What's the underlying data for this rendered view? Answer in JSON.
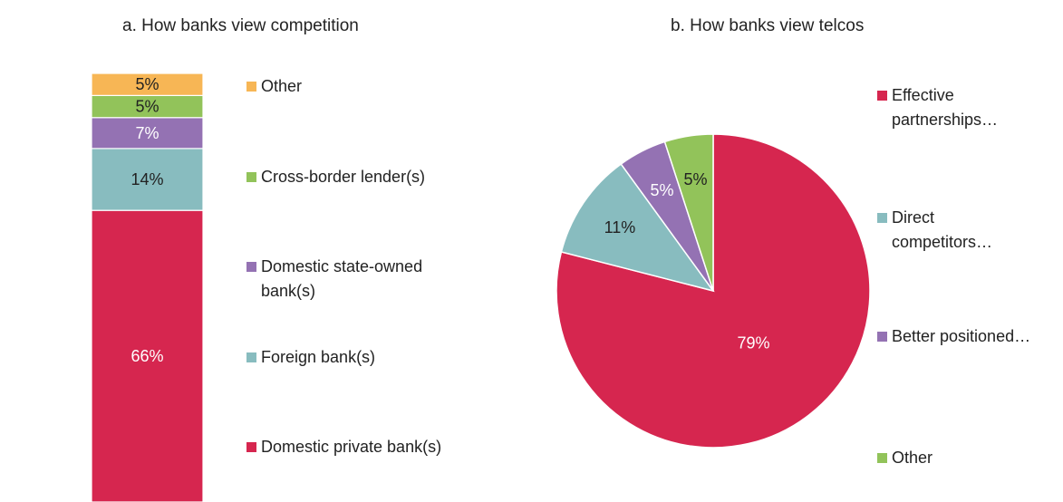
{
  "colors": {
    "domestic_private": "#D6264F",
    "foreign": "#88BCBF",
    "state_owned": "#9472B3",
    "cross_border": "#92C35A",
    "other": "#F7B655",
    "label_dark": "#222222",
    "label_light": "#ffffff"
  },
  "chart_data": [
    {
      "type": "bar",
      "stacked": true,
      "title": "a. How banks view competition",
      "legend_position": "right",
      "series": [
        {
          "name": "Domestic private bank(s)",
          "value": 66,
          "label": "66%",
          "color_key": "domestic_private",
          "label_color_key": "label_light"
        },
        {
          "name": "Foreign bank(s)",
          "value": 14,
          "label": "14%",
          "color_key": "foreign",
          "label_color_key": "label_dark"
        },
        {
          "name": "Domestic state-owned bank(s)",
          "value": 7,
          "label": "7%",
          "color_key": "state_owned",
          "label_color_key": "label_light"
        },
        {
          "name": "Cross-border lender(s)",
          "value": 5,
          "label": "5%",
          "color_key": "cross_border",
          "label_color_key": "label_dark"
        },
        {
          "name": "Other",
          "value": 5,
          "label": "5%",
          "color_key": "other",
          "label_color_key": "label_dark"
        }
      ],
      "legend": [
        {
          "label": "Other",
          "color_key": "other"
        },
        {
          "label": "Cross-border lender(s)",
          "color_key": "cross_border"
        },
        {
          "label": "Domestic state-owned bank(s)",
          "color_key": "state_owned"
        },
        {
          "label": "Foreign bank(s)",
          "color_key": "foreign"
        },
        {
          "label": "Domestic private bank(s)",
          "color_key": "domestic_private"
        }
      ]
    },
    {
      "type": "pie",
      "title": "b. How banks view telcos",
      "legend_position": "right",
      "slices": [
        {
          "name": "Effective partnerships…",
          "value": 79,
          "label": "79%",
          "color_key": "domestic_private",
          "label_color_key": "label_light"
        },
        {
          "name": "Direct competitors…",
          "value": 11,
          "label": "11%",
          "color_key": "foreign",
          "label_color_key": "label_dark"
        },
        {
          "name": "Better positioned…",
          "value": 5,
          "label": "5%",
          "color_key": "state_owned",
          "label_color_key": "label_light"
        },
        {
          "name": "Other",
          "value": 5,
          "label": "5%",
          "color_key": "cross_border",
          "label_color_key": "label_dark"
        }
      ],
      "legend": [
        {
          "label": "Effective partnerships…",
          "color_key": "domestic_private"
        },
        {
          "label": "Direct competitors…",
          "color_key": "foreign"
        },
        {
          "label": "Better positioned…",
          "color_key": "state_owned"
        },
        {
          "label": "Other",
          "color_key": "cross_border"
        }
      ]
    }
  ]
}
